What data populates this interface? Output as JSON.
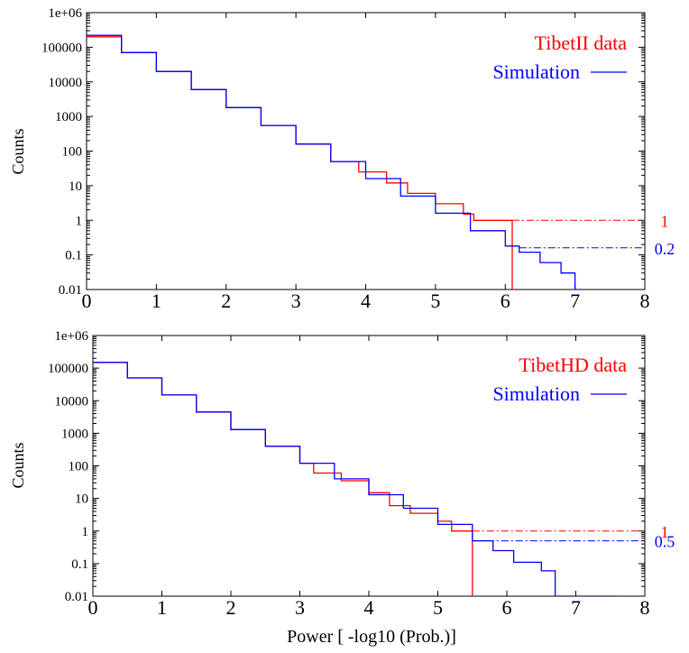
{
  "colors": {
    "data": "#ff0000",
    "simulation": "#0000ff",
    "axes": "#000000"
  },
  "x_axis_label": "Power [ -log10 (Prob.)]",
  "chart_data": [
    {
      "type": "line",
      "ylabel": "Counts",
      "xlim": [
        0,
        8
      ],
      "ylim": [
        0.01,
        1000000
      ],
      "yscale": "log",
      "x_ticks": [
        "0",
        "1",
        "2",
        "3",
        "4",
        "5",
        "6",
        "7",
        "8"
      ],
      "y_ticks": [
        "0.01",
        "0.1",
        "1",
        "10",
        "100",
        "1000",
        "10000",
        "100000",
        "1e+06"
      ],
      "legend_position": "top-right",
      "series": [
        {
          "name": "TibetII data",
          "color": "#ff0000",
          "style": "step",
          "legend_swatch": false,
          "x": [
            0,
            0.5,
            1,
            1.5,
            2,
            2.5,
            3,
            3.5,
            3.9,
            4.3,
            4.6,
            5.0,
            5.4,
            5.55,
            6.1,
            6.1
          ],
          "y": [
            200000,
            70000,
            20000,
            6000,
            1800,
            550,
            160,
            50,
            25,
            12,
            6,
            3,
            1.5,
            1,
            1,
            0.0085
          ]
        },
        {
          "name": "Simulation",
          "color": "#0000ff",
          "style": "step",
          "legend_swatch": true,
          "x": [
            0,
            0.5,
            1,
            1.5,
            2,
            2.5,
            3,
            3.5,
            4,
            4.5,
            5,
            5.5,
            6,
            6.2,
            6.5,
            6.8,
            7.0,
            7.1
          ],
          "y": [
            220000,
            70000,
            20000,
            6000,
            1800,
            550,
            160,
            50,
            16,
            5,
            1.6,
            0.5,
            0.18,
            0.12,
            0.06,
            0.03,
            0.01,
            0.01
          ]
        }
      ],
      "annotations": [
        {
          "text": "1",
          "y": 1,
          "color": "#ff0000"
        },
        {
          "text": "0.2",
          "y": 0.16,
          "color": "#0000ff"
        }
      ]
    },
    {
      "type": "line",
      "ylabel": "Counts",
      "xlim": [
        0,
        8
      ],
      "ylim": [
        0.01,
        1000000
      ],
      "yscale": "log",
      "x_ticks": [
        "0",
        "1",
        "2",
        "3",
        "4",
        "5",
        "6",
        "7",
        "8"
      ],
      "y_ticks": [
        "0.01",
        "0.1",
        "1",
        "10",
        "100",
        "1000",
        "10000",
        "100000",
        "1e+06"
      ],
      "legend_position": "top-right",
      "series": [
        {
          "name": "TibetHD data",
          "color": "#ff0000",
          "style": "step",
          "legend_swatch": false,
          "x": [
            0,
            0.5,
            1,
            1.5,
            2,
            2.5,
            3,
            3.2,
            3.6,
            4.0,
            4.3,
            4.6,
            5.0,
            5.2,
            5.5,
            5.5
          ],
          "y": [
            150000,
            50000,
            15000,
            4500,
            1300,
            400,
            120,
            60,
            35,
            15,
            6,
            3.5,
            2,
            1,
            1,
            0.0085
          ]
        },
        {
          "name": "Simulation",
          "color": "#0000ff",
          "style": "step",
          "legend_swatch": true,
          "x": [
            0,
            0.5,
            1,
            1.5,
            2,
            2.5,
            3,
            3.5,
            4,
            4.5,
            5,
            5.5,
            5.8,
            6.1,
            6.5,
            6.7,
            7.0,
            7.6
          ],
          "y": [
            150000,
            50000,
            15000,
            4500,
            1300,
            400,
            120,
            40,
            13,
            5,
            1.6,
            0.5,
            0.25,
            0.11,
            0.06,
            0.01,
            0.01,
            0.01
          ]
        }
      ],
      "annotations": [
        {
          "text": "1",
          "y": 1,
          "color": "#ff0000"
        },
        {
          "text": "0.5",
          "y": 0.5,
          "color": "#0000ff"
        }
      ]
    }
  ]
}
